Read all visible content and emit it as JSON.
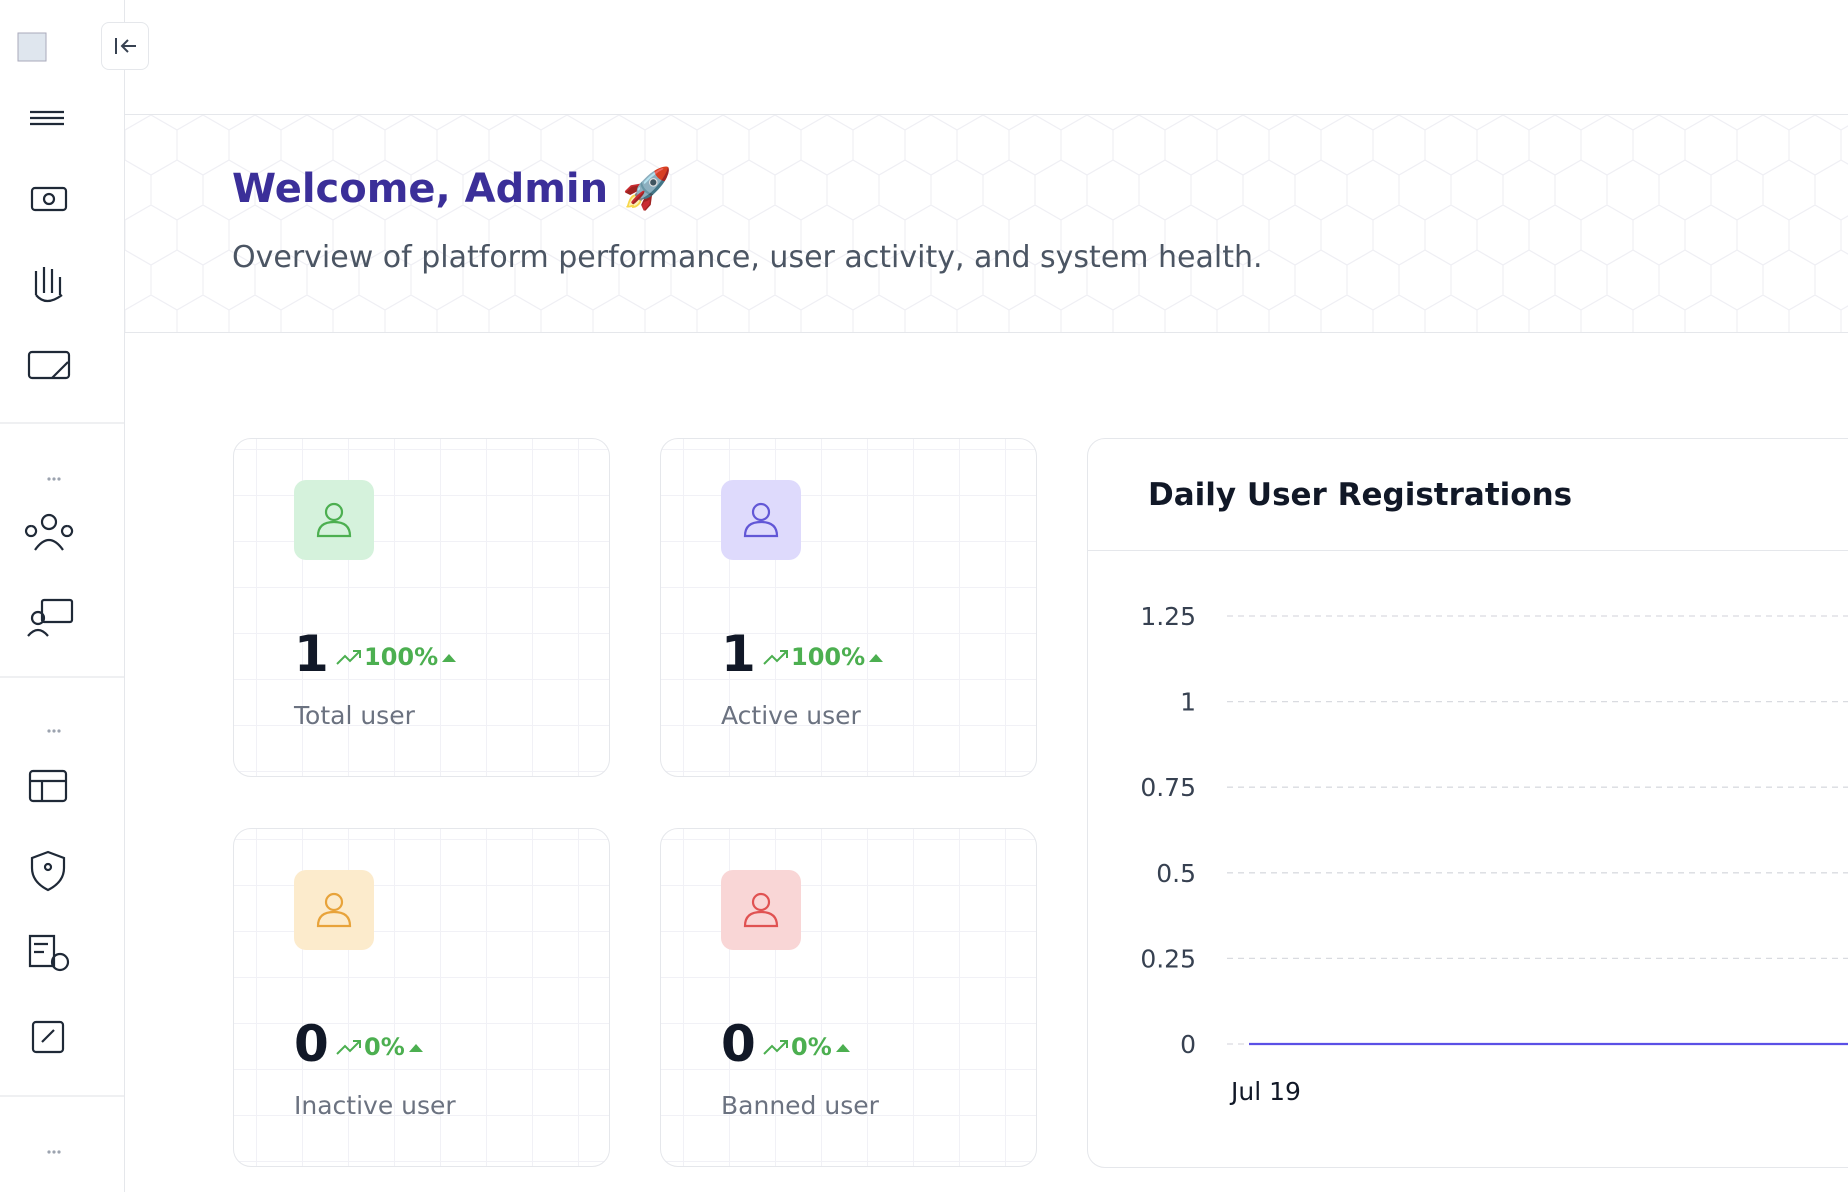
{
  "header": {
    "title": "Welcome, Admin 🚀",
    "subtitle": "Overview of platform performance, user activity, and system health."
  },
  "stats": [
    {
      "value": 1,
      "change": 100,
      "change_label": "100%",
      "label": "Total user",
      "color": "#4caf50",
      "bg": "#d5f2dc"
    },
    {
      "value": 1,
      "change": 100,
      "change_label": "100%",
      "label": "Active user",
      "color": "#6257d6",
      "bg": "#dedafc"
    },
    {
      "value": 0,
      "change": 0,
      "change_label": "0%",
      "label": "Inactive user",
      "color": "#e8a33a",
      "bg": "#fcebcc"
    },
    {
      "value": 0,
      "change": 0,
      "change_label": "0%",
      "label": "Banned user",
      "color": "#e05252",
      "bg": "#f9d6d6"
    }
  ],
  "chart_data": {
    "type": "line",
    "title": "Daily User Registrations",
    "categories": [
      "Jul 19",
      null,
      null,
      null,
      null,
      null,
      null
    ],
    "values": [
      0,
      0,
      0,
      0,
      0,
      0,
      0
    ],
    "color": "#5b50e6",
    "ylim": [
      0,
      1.25
    ],
    "yticks": [
      0,
      0.25,
      0.5,
      0.75,
      1,
      1.25
    ],
    "grid": true
  }
}
